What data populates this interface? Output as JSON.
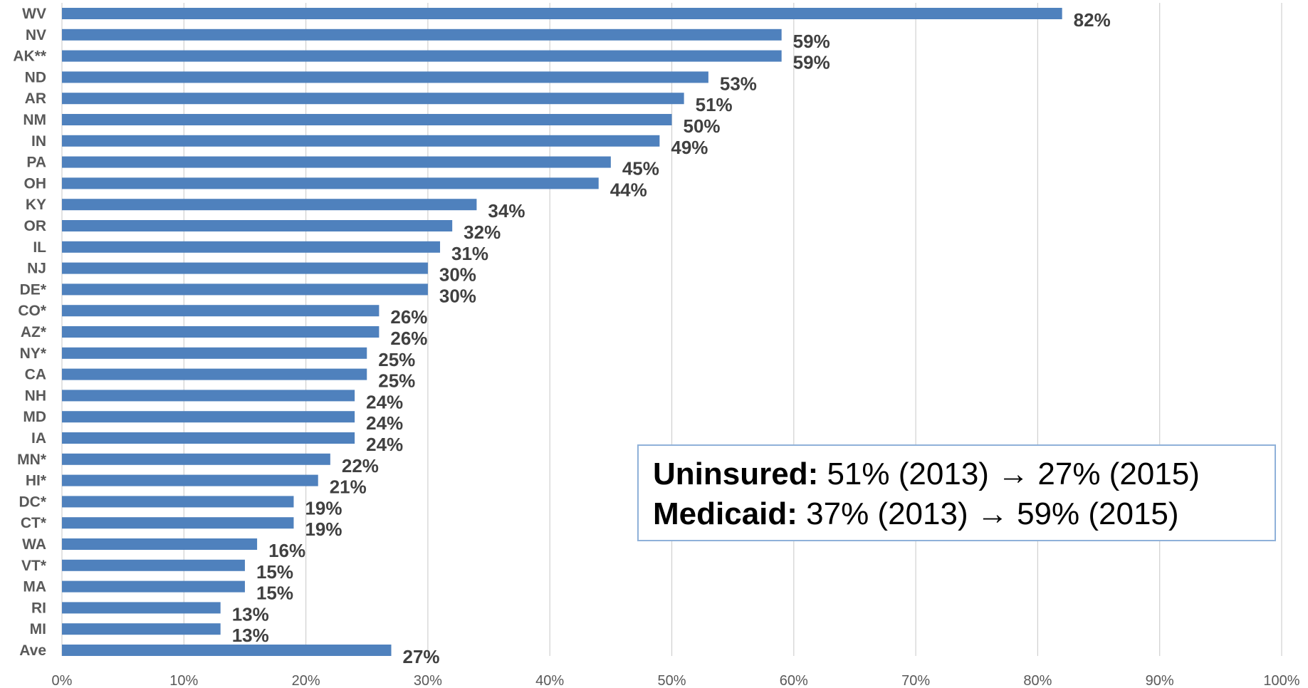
{
  "chart_data": {
    "type": "bar",
    "orientation": "horizontal",
    "categories": [
      "WV",
      "NV",
      "AK**",
      "ND",
      "AR",
      "NM",
      "IN",
      "PA",
      "OH",
      "KY",
      "OR",
      "IL",
      "NJ",
      "DE*",
      "CO*",
      "AZ*",
      "NY*",
      "CA",
      "NH",
      "MD",
      "IA",
      "MN*",
      "HI*",
      "DC*",
      "CT*",
      "WA",
      "VT*",
      "MA",
      "RI",
      "MI",
      "Ave"
    ],
    "values": [
      82,
      59,
      59,
      53,
      51,
      50,
      49,
      45,
      44,
      34,
      32,
      31,
      30,
      30,
      26,
      26,
      25,
      25,
      24,
      24,
      24,
      22,
      21,
      19,
      19,
      16,
      15,
      15,
      13,
      13,
      27
    ],
    "data_labels": [
      "82%",
      "59%",
      "59%",
      "53%",
      "51%",
      "50%",
      "49%",
      "45%",
      "44%",
      "34%",
      "32%",
      "31%",
      "30%",
      "30%",
      "26%",
      "26%",
      "25%",
      "25%",
      "24%",
      "24%",
      "24%",
      "22%",
      "21%",
      "19%",
      "19%",
      "16%",
      "15%",
      "15%",
      "13%",
      "13%",
      "27%"
    ],
    "x_ticks": [
      "0%",
      "10%",
      "20%",
      "30%",
      "40%",
      "50%",
      "60%",
      "70%",
      "80%",
      "90%",
      "100%"
    ],
    "xlim": [
      0,
      100
    ],
    "grid": "vertical",
    "bar_color": "#4f81bd",
    "title": "",
    "xlabel": "",
    "ylabel": ""
  },
  "summary": {
    "uninsured_label": "Uninsured:",
    "uninsured_text": " 51% (2013) → 27% (2015)",
    "medicaid_label": "Medicaid:",
    "medicaid_text": " 37% (2013) → 59% (2015)"
  }
}
